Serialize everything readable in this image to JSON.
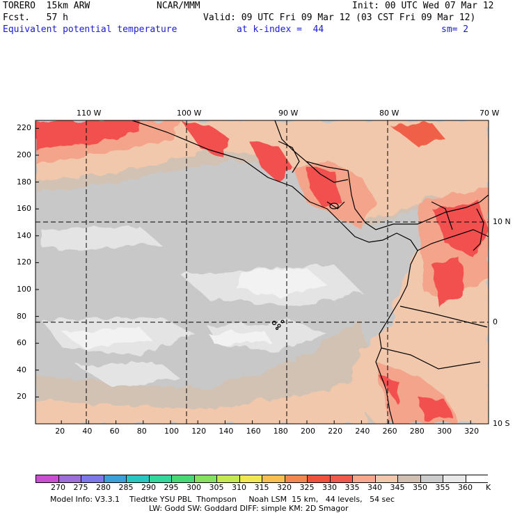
{
  "header": {
    "model": "TORERO  15km ARW",
    "org": "NCAR/MMM",
    "init": "Init: 00 UTC Wed 07 Mar 12",
    "fcst": "Fcst.   57 h",
    "valid": "Valid: 09 UTC Fri 09 Mar 12 (03 CST Fri 09 Mar 12)",
    "field": "Equivalent potential temperature",
    "level": "at k-index =  44",
    "smooth": "sm= 2"
  },
  "map": {
    "top_lon_labels": [
      "110 W",
      "100 W",
      "90 W",
      "80 W",
      "70 W"
    ],
    "right_lat_labels": [
      "10 N",
      "0",
      "10 S"
    ],
    "y_ticks": [
      "220",
      "200",
      "180",
      "160",
      "140",
      "120",
      "100",
      "80",
      "60",
      "40",
      "20"
    ],
    "x_ticks": [
      "20",
      "40",
      "60",
      "80",
      "100",
      "120",
      "140",
      "160",
      "180",
      "200",
      "220",
      "240",
      "260",
      "280",
      "300",
      "320"
    ],
    "colors": {
      "bg_grey": "#c8c8c8",
      "light": "#e4e4e4",
      "white": "#f2f2f2",
      "tan": "#d2c2b4",
      "peach": "#f2c8ac",
      "salmon": "#f4a48a",
      "red": "#f25050",
      "redorange": "#f06048"
    }
  },
  "colorbar": {
    "labels": [
      "270",
      "275",
      "280",
      "285",
      "290",
      "295",
      "300",
      "305",
      "310",
      "315",
      "320",
      "325",
      "330",
      "335",
      "340",
      "345",
      "350",
      "355",
      "360"
    ],
    "unit": "K",
    "colors": [
      "#c850d0",
      "#9c6ed8",
      "#7c78e8",
      "#3ca0d8",
      "#28c8c0",
      "#30d89c",
      "#48d878",
      "#88e060",
      "#c8e850",
      "#f0e850",
      "#f4c050",
      "#f08850",
      "#f05040",
      "#f05850",
      "#f4a890",
      "#f2c8ac",
      "#d0c0b4",
      "#cccccc",
      "#e8e8e8",
      "#ffffff"
    ]
  },
  "footer": {
    "line1": "Model Info: V3.3.1    Tiedtke YSU PBL  Thompson     Noah LSM  15 km,   44 levels,   54 sec",
    "line2": "LW: Godd SW: Goddard DIFF: simple KM: 2D Smagor"
  }
}
